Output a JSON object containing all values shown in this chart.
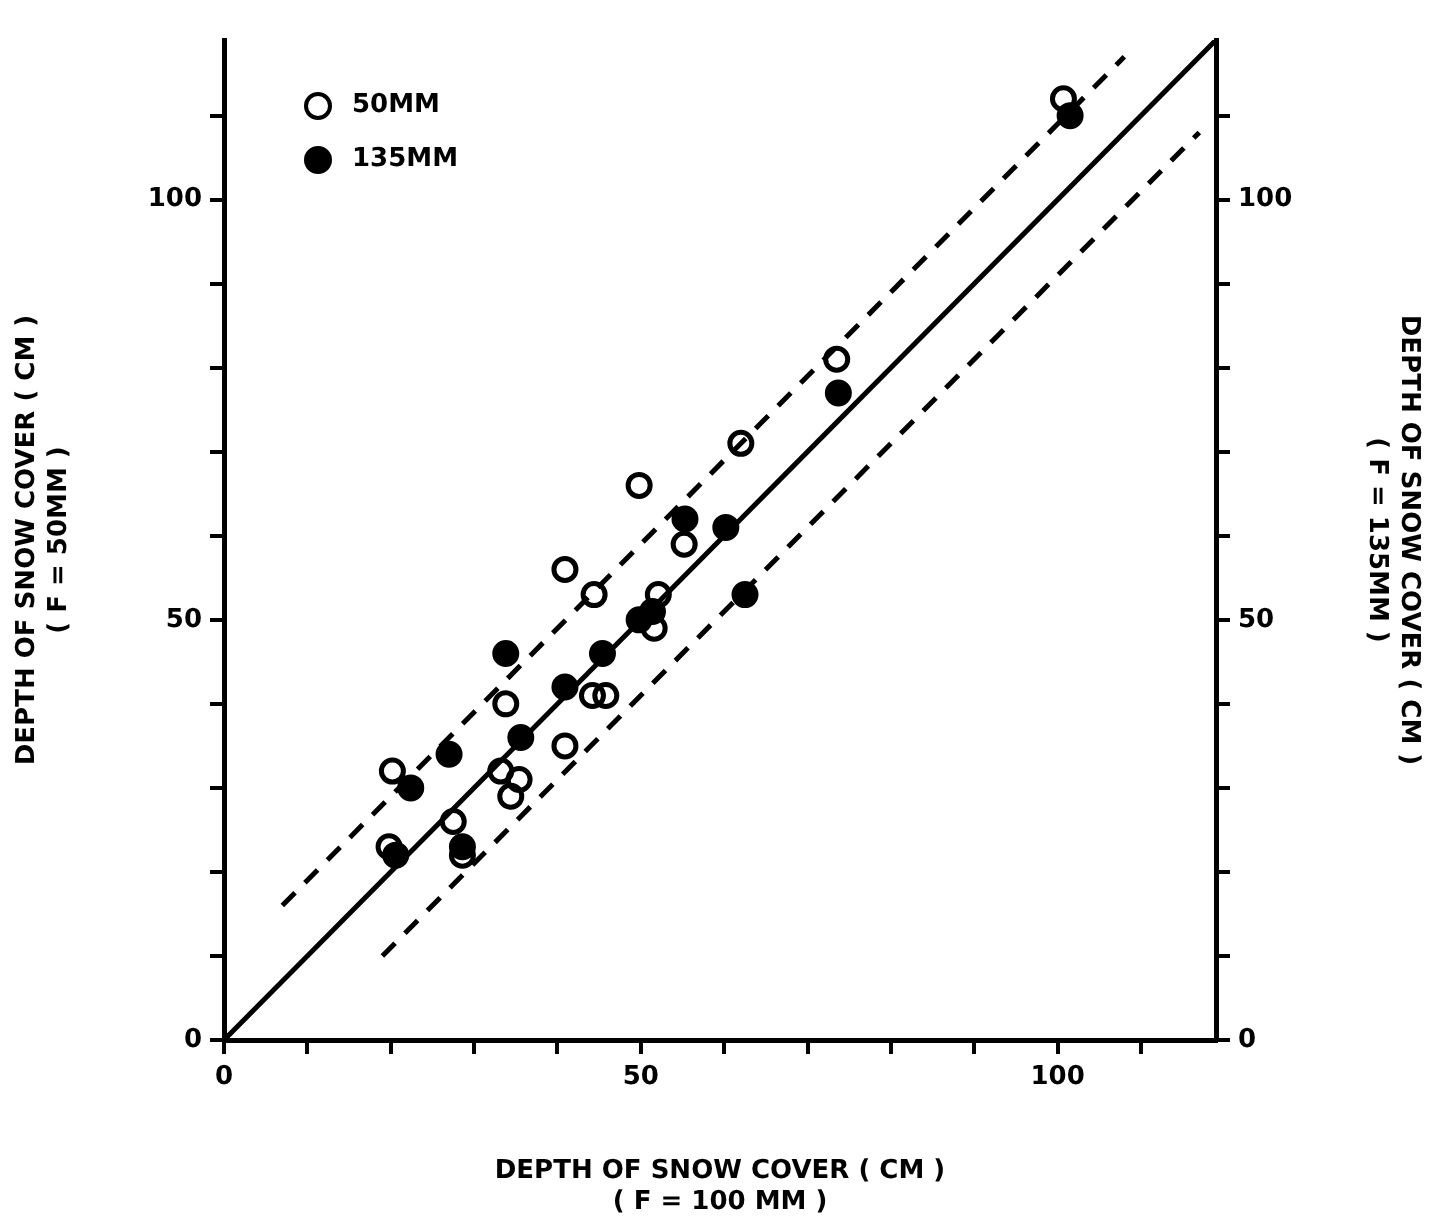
{
  "chart_data": {
    "type": "scatter",
    "xlabel": "DEPTH OF SNOW COVER ( CM )\n( F = 100 MM )",
    "ylabel": "DEPTH OF SNOW COVER ( CM )\n( F = 50MM )",
    "y2label": "DEPTH OF SNOW COVER ( CM )\n( F = 135MM )",
    "xlim": [
      0,
      119
    ],
    "ylim": [
      0,
      119
    ],
    "y2lim": [
      0,
      119
    ],
    "xticks": [
      0,
      {
        "value": 10,
        "label": null
      },
      {
        "value": 20,
        "label": null
      },
      {
        "value": 30,
        "label": null
      },
      {
        "value": 40,
        "label": null
      },
      50,
      {
        "value": 60,
        "label": null
      },
      {
        "value": 70,
        "label": null
      },
      {
        "value": 80,
        "label": null
      },
      {
        "value": 90,
        "label": null
      },
      100,
      {
        "value": 110,
        "label": null
      }
    ],
    "yticks": [
      0,
      {
        "value": 10,
        "label": null
      },
      {
        "value": 20,
        "label": null
      },
      {
        "value": 30,
        "label": null
      },
      {
        "value": 40,
        "label": null
      },
      50,
      {
        "value": 60,
        "label": null
      },
      {
        "value": 70,
        "label": null
      },
      {
        "value": 80,
        "label": null
      },
      {
        "value": 90,
        "label": null
      },
      100,
      {
        "value": 110,
        "label": null
      }
    ],
    "y2ticks": [
      0,
      {
        "value": 10,
        "label": null
      },
      {
        "value": 20,
        "label": null
      },
      {
        "value": 30,
        "label": null
      },
      {
        "value": 40,
        "label": null
      },
      50,
      {
        "value": 60,
        "label": null
      },
      {
        "value": 70,
        "label": null
      },
      {
        "value": 80,
        "label": null
      },
      {
        "value": 90,
        "label": null
      },
      100,
      {
        "value": 110,
        "label": null
      }
    ],
    "grid": false,
    "legend": "top left",
    "series": [
      {
        "name": "50MM",
        "marker": "circle",
        "color": "#000000",
        "x": [
          100.7,
          73.5,
          62.0,
          49.8,
          55.2,
          40.9,
          44.4,
          52.1,
          51.6,
          33.8,
          44.2,
          45.8,
          40.9,
          33.2,
          35.4,
          34.4,
          27.5,
          28.6,
          20.2,
          19.8
        ],
        "values": [
          112,
          81,
          71,
          66,
          59,
          56,
          53,
          53,
          49,
          40,
          41,
          41,
          35,
          32,
          31,
          29,
          26,
          22,
          32,
          23
        ]
      },
      {
        "name": "135MM",
        "marker": "circle",
        "axis": "y2",
        "color": "#000000",
        "x": [
          101.5,
          73.7,
          55.3,
          60.2,
          62.5,
          49.8,
          51.4,
          45.4,
          40.9,
          33.8,
          35.6,
          27.0,
          22.4,
          20.6,
          28.6
        ],
        "values": [
          110,
          77,
          62,
          61,
          53,
          50,
          51,
          46,
          42,
          46,
          36,
          34,
          30,
          22,
          23
        ]
      },
      {
        "type": "line",
        "marker": "none",
        "line_style": "solid",
        "color": "#000000",
        "x": [
          0,
          119
        ],
        "values": [
          0,
          119
        ]
      },
      {
        "type": "line",
        "marker": "none",
        "line_style": "dashed",
        "color": "#000000",
        "x": [
          7,
          108
        ],
        "values": [
          16,
          117
        ]
      },
      {
        "type": "line",
        "marker": "none",
        "line_style": "dashed",
        "color": "#000000",
        "x": [
          19,
          117
        ],
        "values": [
          10,
          108
        ]
      }
    ]
  }
}
